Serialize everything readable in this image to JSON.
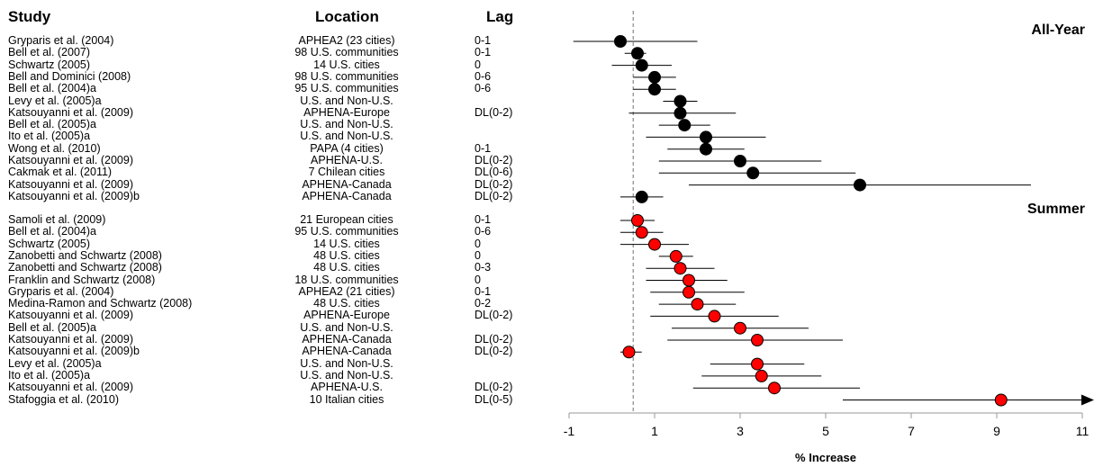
{
  "headers": {
    "study": "Study",
    "location": "Location",
    "lag": "Lag"
  },
  "chart_data": {
    "type": "forest",
    "xlabel": "% Increase",
    "xlim": [
      -1,
      11
    ],
    "xticks": [
      -1,
      1,
      3,
      5,
      7,
      9,
      11
    ],
    "reference_line": 0.5,
    "groups": [
      {
        "label": "All-Year",
        "color": "#000000",
        "rows": [
          {
            "study": "Gryparis et al. (2004)",
            "location": "APHEA2 (23 cities)",
            "lag": "0-1",
            "estimate": 0.2,
            "low": -0.9,
            "high": 2.0
          },
          {
            "study": "Bell et al. (2007)",
            "location": "98 U.S. communities",
            "lag": "0-1",
            "estimate": 0.6,
            "low": 0.3,
            "high": 0.8
          },
          {
            "study": "Schwartz (2005)",
            "location": "14 U.S. cities",
            "lag": "0",
            "estimate": 0.7,
            "low": 0.0,
            "high": 1.4
          },
          {
            "study": "Bell and Dominici (2008)",
            "location": "98 U.S. communities",
            "lag": "0-6",
            "estimate": 1.0,
            "low": 0.5,
            "high": 1.5
          },
          {
            "study": "Bell et al. (2004)a",
            "location": "95 U.S. communities",
            "lag": "0-6",
            "estimate": 1.0,
            "low": 0.5,
            "high": 1.5
          },
          {
            "study": "Levy et al. (2005)a",
            "location": "U.S. and Non-U.S.",
            "lag": "",
            "estimate": 1.6,
            "low": 1.2,
            "high": 2.0
          },
          {
            "study": "Katsouyanni et al. (2009)",
            "location": "APHENA-Europe",
            "lag": "DL(0-2)",
            "estimate": 1.6,
            "low": 0.4,
            "high": 2.9
          },
          {
            "study": "Bell et al. (2005)a",
            "location": "U.S. and Non-U.S.",
            "lag": "",
            "estimate": 1.7,
            "low": 1.1,
            "high": 2.3
          },
          {
            "study": "Ito et al. (2005)a",
            "location": "U.S. and Non-U.S.",
            "lag": "",
            "estimate": 2.2,
            "low": 0.8,
            "high": 3.6
          },
          {
            "study": "Wong et al. (2010)",
            "location": "PAPA (4 cities)",
            "lag": "0-1",
            "estimate": 2.2,
            "low": 1.3,
            "high": 3.1
          },
          {
            "study": "Katsouyanni et al. (2009)",
            "location": "APHENA-U.S.",
            "lag": "DL(0-2)",
            "estimate": 3.0,
            "low": 1.1,
            "high": 4.9
          },
          {
            "study": "Cakmak et al. (2011)",
            "location": "7 Chilean cities",
            "lag": "DL(0-6)",
            "estimate": 3.3,
            "low": 1.1,
            "high": 5.7
          },
          {
            "study": "Katsouyanni et al. (2009)",
            "location": "APHENA-Canada",
            "lag": "DL(0-2)",
            "estimate": 5.8,
            "low": 1.8,
            "high": 9.8
          },
          {
            "study": "Katsouyanni et al. (2009)b",
            "location": "APHENA-Canada",
            "lag": "DL(0-2)",
            "estimate": 0.7,
            "low": 0.2,
            "high": 1.2
          }
        ]
      },
      {
        "label": "Summer",
        "color": "#ff0000",
        "rows": [
          {
            "study": "Samoli et al. (2009)",
            "location": "21 European cities",
            "lag": "0-1",
            "estimate": 0.6,
            "low": 0.2,
            "high": 1.0
          },
          {
            "study": "Bell et al. (2004)a",
            "location": "95 U.S. communities",
            "lag": "0-6",
            "estimate": 0.7,
            "low": 0.2,
            "high": 1.2
          },
          {
            "study": "Schwartz (2005)",
            "location": "14 U.S. cities",
            "lag": "0",
            "estimate": 1.0,
            "low": 0.2,
            "high": 1.8
          },
          {
            "study": "Zanobetti and Schwartz (2008)",
            "location": "48 U.S. cities",
            "lag": "0",
            "estimate": 1.5,
            "low": 1.1,
            "high": 1.9
          },
          {
            "study": "Zanobetti and Schwartz (2008)",
            "location": "48 U.S. cities",
            "lag": "0-3",
            "estimate": 1.6,
            "low": 0.8,
            "high": 2.4
          },
          {
            "study": "Franklin and Schwartz (2008)",
            "location": "18 U.S. communities",
            "lag": "0",
            "estimate": 1.8,
            "low": 0.8,
            "high": 2.7
          },
          {
            "study": "Gryparis et al. (2004)",
            "location": "APHEA2 (21 cities)",
            "lag": "0-1",
            "estimate": 1.8,
            "low": 0.9,
            "high": 3.1
          },
          {
            "study": "Medina-Ramon and Schwartz (2008)",
            "location": "48 U.S. cities",
            "lag": "0-2",
            "estimate": 2.0,
            "low": 1.1,
            "high": 2.9
          },
          {
            "study": "Katsouyanni et al. (2009)",
            "location": "APHENA-Europe",
            "lag": "DL(0-2)",
            "estimate": 2.4,
            "low": 0.9,
            "high": 3.9
          },
          {
            "study": "Bell et al. (2005)a",
            "location": "U.S. and Non-U.S.",
            "lag": "",
            "estimate": 3.0,
            "low": 1.4,
            "high": 4.6
          },
          {
            "study": "Katsouyanni et al. (2009)",
            "location": "APHENA-Canada",
            "lag": "DL(0-2)",
            "estimate": 3.4,
            "low": 1.3,
            "high": 5.4
          },
          {
            "study": "Katsouyanni et al. (2009)b",
            "location": "APHENA-Canada",
            "lag": "DL(0-2)",
            "estimate": 0.4,
            "low": 0.2,
            "high": 0.7
          },
          {
            "study": "Levy et al. (2005)a",
            "location": "U.S. and Non-U.S.",
            "lag": "",
            "estimate": 3.4,
            "low": 2.3,
            "high": 4.5
          },
          {
            "study": "Ito et al. (2005)a",
            "location": "U.S. and Non-U.S.",
            "lag": "",
            "estimate": 3.5,
            "low": 2.1,
            "high": 4.9
          },
          {
            "study": "Katsouyanni et al. (2009)",
            "location": "APHENA-U.S.",
            "lag": "DL(0-2)",
            "estimate": 3.8,
            "low": 1.9,
            "high": 5.8
          },
          {
            "study": "Stafoggia et al. (2010)",
            "location": "10 Italian cities",
            "lag": "DL(0-5)",
            "estimate": 9.1,
            "low": 5.4,
            "high": 11.8,
            "arrow": true
          }
        ]
      }
    ]
  }
}
